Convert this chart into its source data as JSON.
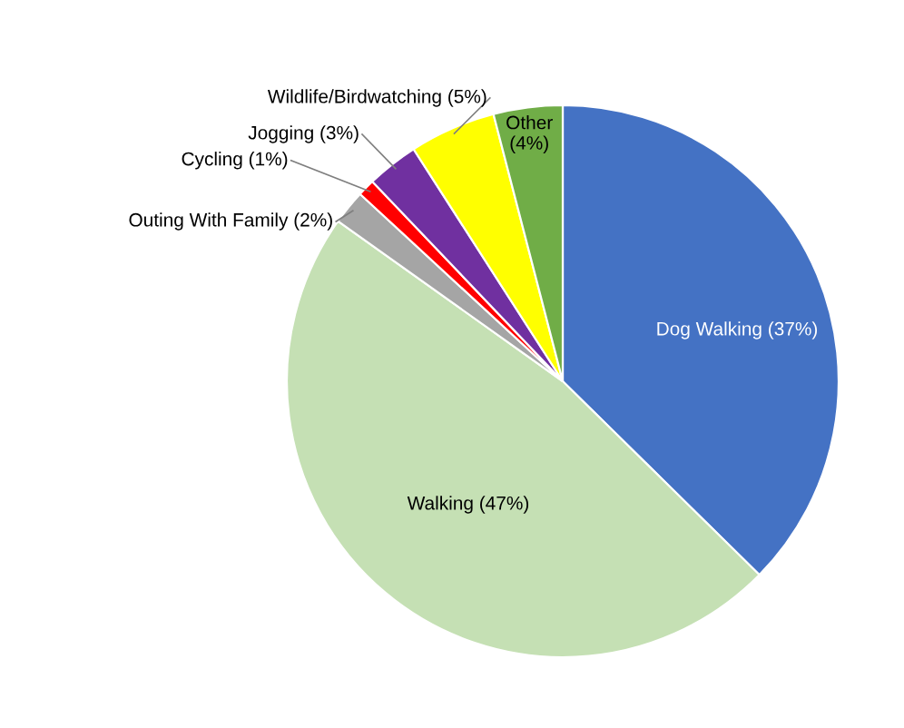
{
  "chart_data": {
    "type": "pie",
    "categories": [
      "Dog Walking (37%)",
      "Walking (47%)",
      "Outing With Family (2%)",
      "Cycling (1%)",
      "Jogging (3%)",
      "Wildlife/Birdwatching (5%)",
      "Other\n(4%)"
    ],
    "values": [
      37,
      47,
      2,
      1,
      3,
      5,
      4
    ],
    "colors": [
      "#4472c4",
      "#c5e0b4",
      "#a5a5a5",
      "#ff0000",
      "#7030a0",
      "#ffff00",
      "#70ad47"
    ]
  }
}
